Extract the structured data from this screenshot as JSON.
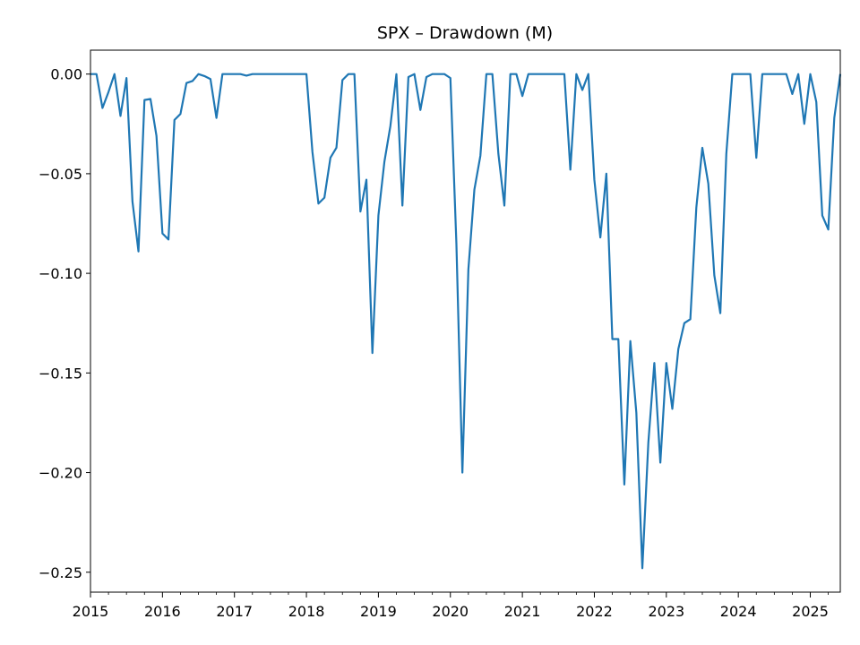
{
  "chart_data": {
    "type": "line",
    "title": "SPX – Drawdown (M)",
    "xlabel": "",
    "ylabel": "",
    "xlim": [
      "2015-01",
      "2025-06"
    ],
    "ylim": [
      -0.26,
      0.012
    ],
    "grid": false,
    "legend": "none",
    "line_color": "#1f77b4",
    "y_ticks": [
      0.0,
      -0.05,
      -0.1,
      -0.15,
      -0.2,
      -0.25
    ],
    "y_tick_labels": [
      "0.00",
      "−0.05",
      "−0.10",
      "−0.15",
      "−0.20",
      "−0.25"
    ],
    "x_ticks": [
      "2015-01",
      "2016-01",
      "2017-01",
      "2018-01",
      "2019-01",
      "2020-01",
      "2021-01",
      "2022-01",
      "2023-01",
      "2024-01",
      "2025-01"
    ],
    "x_tick_labels": [
      "2015",
      "2016",
      "2017",
      "2018",
      "2019",
      "2020",
      "2021",
      "2022",
      "2023",
      "2024",
      "2025"
    ],
    "x": [
      "2015-01",
      "2015-02",
      "2015-03",
      "2015-04",
      "2015-05",
      "2015-06",
      "2015-07",
      "2015-08",
      "2015-09",
      "2015-10",
      "2015-11",
      "2015-12",
      "2016-01",
      "2016-02",
      "2016-03",
      "2016-04",
      "2016-05",
      "2016-06",
      "2016-07",
      "2016-08",
      "2016-09",
      "2016-10",
      "2016-11",
      "2016-12",
      "2017-01",
      "2017-02",
      "2017-03",
      "2017-04",
      "2017-05",
      "2017-06",
      "2017-07",
      "2017-08",
      "2017-09",
      "2017-10",
      "2017-11",
      "2017-12",
      "2018-01",
      "2018-02",
      "2018-03",
      "2018-04",
      "2018-05",
      "2018-06",
      "2018-07",
      "2018-08",
      "2018-09",
      "2018-10",
      "2018-11",
      "2018-12",
      "2019-01",
      "2019-02",
      "2019-03",
      "2019-04",
      "2019-05",
      "2019-06",
      "2019-07",
      "2019-08",
      "2019-09",
      "2019-10",
      "2019-11",
      "2019-12",
      "2020-01",
      "2020-02",
      "2020-03",
      "2020-04",
      "2020-05",
      "2020-06",
      "2020-07",
      "2020-08",
      "2020-09",
      "2020-10",
      "2020-11",
      "2020-12",
      "2021-01",
      "2021-02",
      "2021-03",
      "2021-04",
      "2021-05",
      "2021-06",
      "2021-07",
      "2021-08",
      "2021-09",
      "2021-10",
      "2021-11",
      "2021-12",
      "2022-01",
      "2022-02",
      "2022-03",
      "2022-04",
      "2022-05",
      "2022-06",
      "2022-07",
      "2022-08",
      "2022-09",
      "2022-10",
      "2022-11",
      "2022-12",
      "2023-01",
      "2023-02",
      "2023-03",
      "2023-04",
      "2023-05",
      "2023-06",
      "2023-07",
      "2023-08",
      "2023-09",
      "2023-10",
      "2023-11",
      "2023-12",
      "2024-01",
      "2024-02",
      "2024-03",
      "2024-04",
      "2024-05",
      "2024-06",
      "2024-07",
      "2024-08",
      "2024-09",
      "2024-10",
      "2024-11",
      "2024-12",
      "2025-01",
      "2025-02",
      "2025-03",
      "2025-04",
      "2025-05",
      "2025-06"
    ],
    "series": [
      {
        "values": [
          0.0,
          0.0,
          -0.017,
          -0.009,
          0.0,
          -0.021,
          -0.002,
          -0.064,
          -0.089,
          -0.013,
          -0.0125,
          -0.031,
          -0.08,
          -0.083,
          -0.023,
          -0.02,
          -0.0045,
          -0.0035,
          0.0,
          -0.001,
          -0.0025,
          -0.022,
          0.0,
          0.0,
          0.0,
          0.0,
          -0.0008,
          0.0,
          0.0,
          0.0,
          0.0,
          0.0,
          0.0,
          0.0,
          0.0,
          0.0,
          0.0,
          -0.039,
          -0.065,
          -0.062,
          -0.042,
          -0.037,
          -0.003,
          0.0,
          0.0,
          -0.069,
          -0.053,
          -0.14,
          -0.071,
          -0.044,
          -0.026,
          0.0,
          -0.066,
          -0.0015,
          0.0,
          -0.018,
          -0.0015,
          0.0,
          0.0,
          0.0,
          -0.002,
          -0.085,
          -0.2,
          -0.098,
          -0.058,
          -0.041,
          0.0,
          0.0,
          -0.04,
          -0.066,
          0.0,
          0.0,
          -0.011,
          0.0,
          0.0,
          0.0,
          0.0,
          0.0,
          0.0,
          0.0,
          -0.048,
          0.0,
          -0.008,
          0.0,
          -0.053,
          -0.082,
          -0.05,
          -0.133,
          -0.133,
          -0.206,
          -0.134,
          -0.17,
          -0.248,
          -0.185,
          -0.145,
          -0.195,
          -0.145,
          -0.168,
          -0.138,
          -0.125,
          -0.123,
          -0.067,
          -0.037,
          -0.055,
          -0.101,
          -0.12,
          -0.04,
          0.0,
          0.0,
          0.0,
          0.0,
          -0.042,
          0.0,
          0.0,
          0.0,
          0.0,
          0.0,
          -0.01,
          0.0,
          -0.025,
          0.0,
          -0.014,
          -0.071,
          -0.078,
          -0.022,
          0.0
        ]
      }
    ]
  }
}
